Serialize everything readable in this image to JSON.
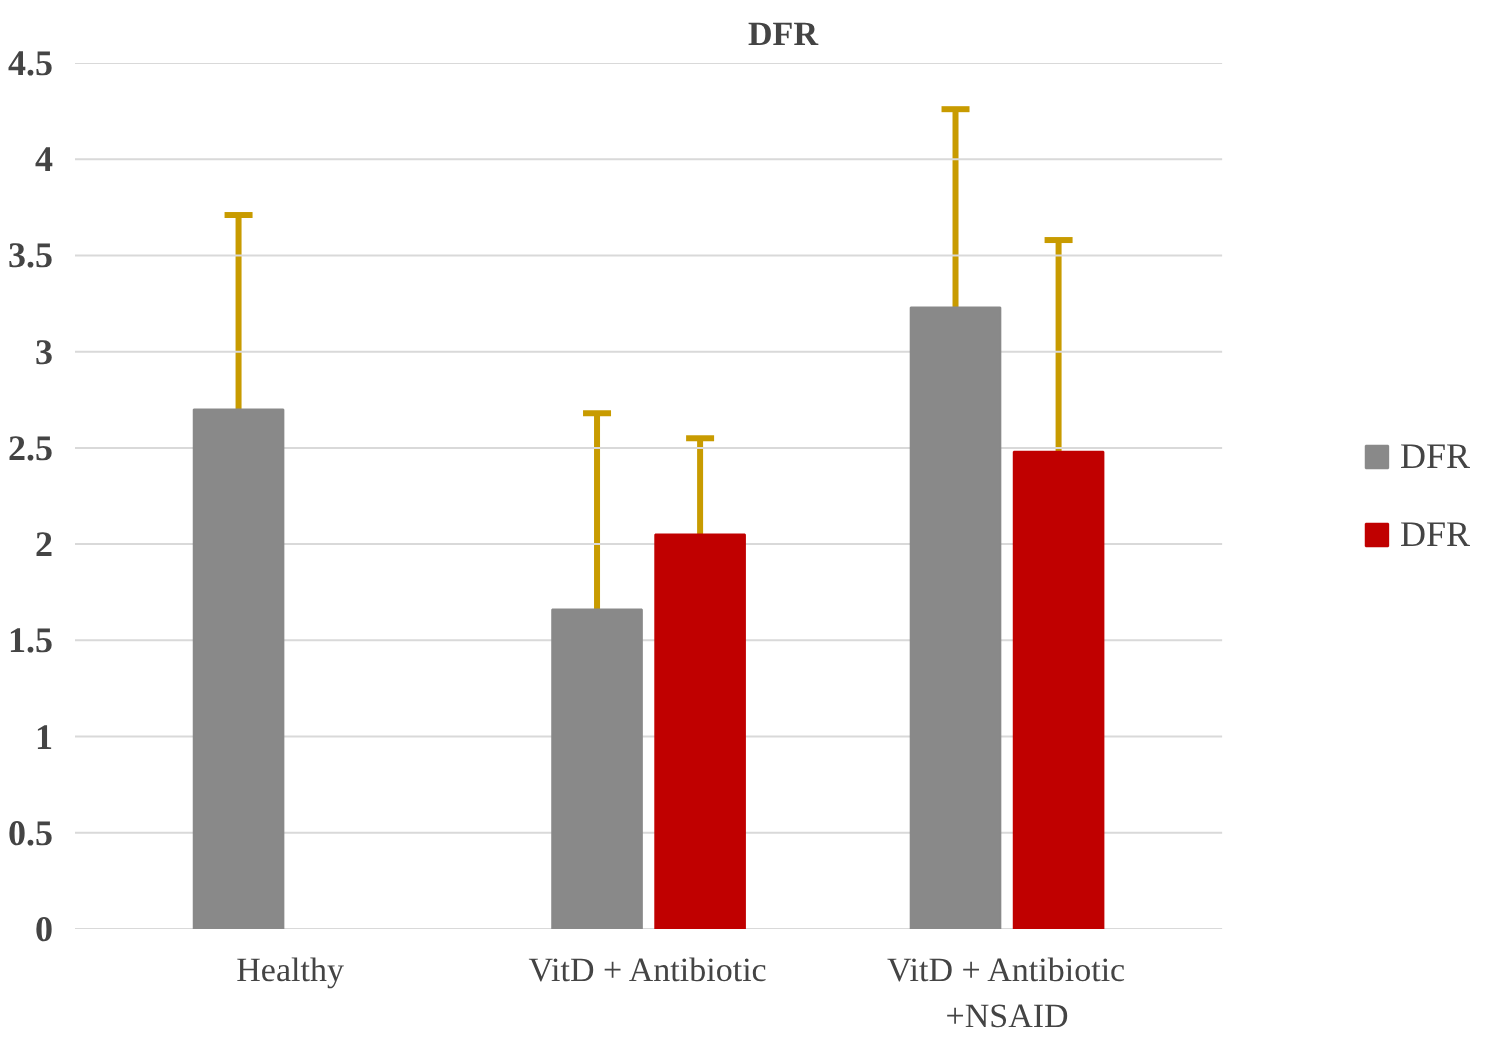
{
  "chart_data": {
    "type": "bar",
    "title": "DFR",
    "categories": [
      "Healthy",
      "VitD + Antibiotic",
      "VitD + Antibiotic +NSAID"
    ],
    "series": [
      {
        "name": "DFR",
        "color": "#898989",
        "values": [
          2.7,
          1.66,
          3.23
        ],
        "errors": [
          [
            2.7,
            3.71
          ],
          [
            1.66,
            2.68
          ],
          [
            3.23,
            4.26
          ]
        ]
      },
      {
        "name": "DFR",
        "color": "#c00000",
        "values": [
          null,
          2.05,
          2.48
        ],
        "errors": [
          null,
          [
            2.05,
            2.55
          ],
          [
            2.48,
            3.58
          ]
        ]
      }
    ],
    "ylim": [
      0,
      4.5
    ],
    "yticks": [
      0,
      0.5,
      1,
      1.5,
      2,
      2.5,
      3,
      3.5,
      4,
      4.5
    ],
    "grid": "y",
    "legend": "right"
  }
}
